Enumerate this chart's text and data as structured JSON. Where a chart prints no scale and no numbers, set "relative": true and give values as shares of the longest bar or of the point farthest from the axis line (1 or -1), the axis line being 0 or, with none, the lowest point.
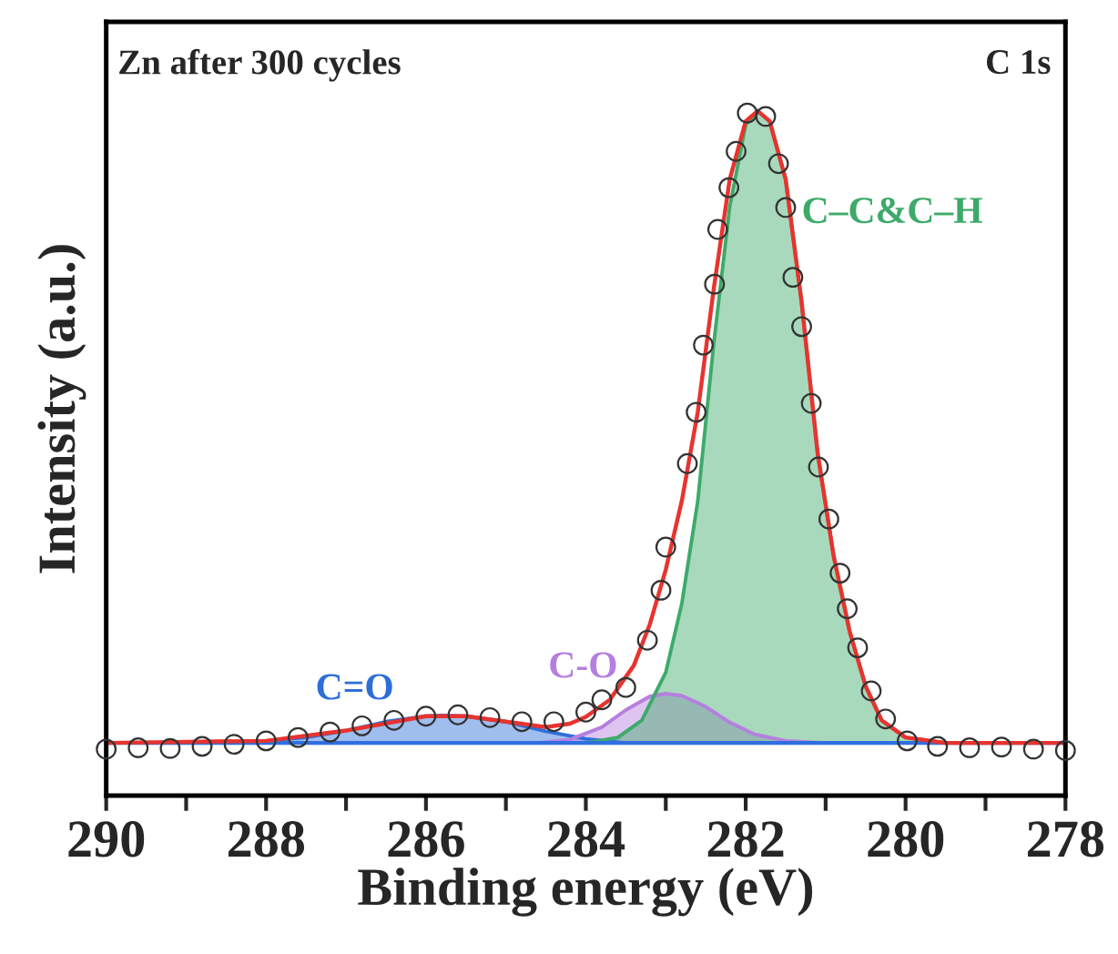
{
  "chart_data": {
    "type": "line",
    "title": "Zn after 300 cycles",
    "xlabel": "Binding energy (eV)",
    "ylabel": "Intensity (a.u.)",
    "relative": true,
    "annotations": [
      "C 1s"
    ],
    "xlim": [
      290,
      278
    ],
    "xticks": [
      290,
      {
        "value": 289,
        "label": null
      },
      288,
      {
        "value": 287,
        "label": null
      },
      286,
      {
        "value": 285,
        "label": null
      },
      284,
      {
        "value": 283,
        "label": null
      },
      282,
      {
        "value": 281,
        "label": null
      },
      280,
      {
        "value": 279,
        "label": null
      },
      278
    ],
    "tick_labels": "x",
    "legend": false,
    "grid": false,
    "series": [
      {
        "type": "area",
        "name": "C=O",
        "color": "#2d6fd8",
        "x": [
          289,
          288,
          287.5,
          287,
          286.5,
          286,
          285.8,
          285.5,
          285,
          284.5,
          284,
          283.5
        ],
        "values": [
          0.077,
          0.08,
          0.085,
          0.095,
          0.108,
          0.116,
          0.117,
          0.116,
          0.108,
          0.094,
          0.083,
          0.077
        ]
      },
      {
        "type": "area",
        "name": "C-O",
        "color": "#b57fe0",
        "x": [
          284.6,
          284.2,
          283.8,
          283.5,
          283.2,
          283.0,
          282.8,
          282.5,
          282.2,
          281.9,
          281.5,
          281.0
        ],
        "values": [
          0.077,
          0.082,
          0.1,
          0.125,
          0.145,
          0.149,
          0.146,
          0.13,
          0.107,
          0.09,
          0.08,
          0.077
        ]
      },
      {
        "type": "area",
        "name": "C–C&C–H",
        "color": "#3daa6a",
        "x": [
          284.0,
          283.6,
          283.3,
          283.0,
          282.8,
          282.6,
          282.4,
          282.2,
          282.0,
          281.85,
          281.7,
          281.5,
          281.3,
          281.1,
          280.9,
          280.7,
          280.5,
          280.3,
          280.0,
          279.5
        ],
        "values": [
          0.077,
          0.085,
          0.11,
          0.18,
          0.28,
          0.43,
          0.66,
          0.86,
          0.98,
          1.0,
          0.985,
          0.9,
          0.72,
          0.5,
          0.35,
          0.24,
          0.16,
          0.11,
          0.085,
          0.077
        ]
      },
      {
        "color": "#2f6fe0",
        "x": [
          290,
          278
        ],
        "values": [
          0.077,
          0.077
        ]
      },
      {
        "color": "#e8332f",
        "x": [
          290,
          288,
          287,
          286,
          285.5,
          285,
          284.5,
          284.2,
          284.0,
          283.7,
          283.4,
          283.2,
          283.0,
          282.8,
          282.6,
          282.4,
          282.2,
          282.0,
          281.85,
          281.7,
          281.5,
          281.3,
          281.1,
          280.9,
          280.7,
          280.5,
          280.3,
          280.0,
          279.5,
          278
        ],
        "values": [
          0.077,
          0.08,
          0.095,
          0.116,
          0.116,
          0.108,
          0.1,
          0.105,
          0.115,
          0.14,
          0.19,
          0.25,
          0.33,
          0.43,
          0.56,
          0.74,
          0.9,
          0.985,
          1.0,
          0.985,
          0.9,
          0.72,
          0.5,
          0.35,
          0.24,
          0.16,
          0.11,
          0.085,
          0.077,
          0.077
        ]
      },
      {
        "type": "scatter",
        "marker": "circle",
        "color": "#333333",
        "x": [
          290,
          289.6,
          289.2,
          288.8,
          288.4,
          288.0,
          287.6,
          287.2,
          286.8,
          286.4,
          286.0,
          285.6,
          285.2,
          284.8,
          284.4,
          284.0,
          283.8,
          283.5,
          283.23,
          283.06,
          283.0,
          282.73,
          282.62,
          282.53,
          282.39,
          282.35,
          282.21,
          282.12,
          281.98,
          281.75,
          281.59,
          281.5,
          281.41,
          281.3,
          281.18,
          281.09,
          280.96,
          280.82,
          280.73,
          280.6,
          280.43,
          280.25,
          279.98,
          279.6,
          279.2,
          278.8,
          278.4,
          278.0
        ],
        "values": [
          0.068,
          0.07,
          0.069,
          0.072,
          0.075,
          0.08,
          0.085,
          0.093,
          0.102,
          0.11,
          0.116,
          0.118,
          0.114,
          0.108,
          0.108,
          0.122,
          0.14,
          0.158,
          0.227,
          0.3,
          0.363,
          0.485,
          0.56,
          0.658,
          0.747,
          0.827,
          0.888,
          0.941,
          0.997,
          0.992,
          0.923,
          0.859,
          0.757,
          0.685,
          0.573,
          0.48,
          0.404,
          0.325,
          0.273,
          0.216,
          0.153,
          0.112,
          0.08,
          0.072,
          0.07,
          0.071,
          0.068,
          0.066
        ]
      }
    ]
  }
}
